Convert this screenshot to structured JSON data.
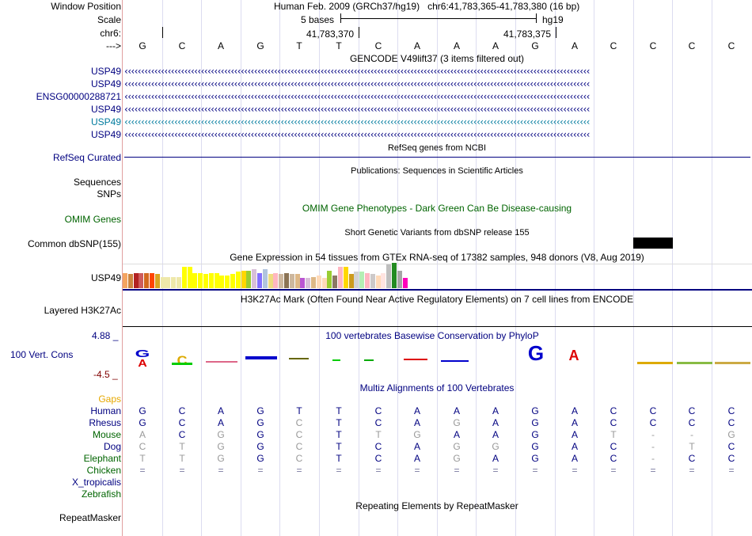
{
  "header": {
    "window_position_label": "Window Position",
    "assembly": "Human Feb. 2009 (GRCh37/hg19)",
    "position": "chr6:41,783,365-41,783,380 (16 bp)",
    "scale_label": "Scale",
    "scale_value": "5 bases",
    "scale_db": "hg19",
    "chrom_label": "chr6:",
    "coord1": "41,783,370",
    "coord2": "41,783,375",
    "strand_label": "--->"
  },
  "sequence": [
    "G",
    "C",
    "A",
    "G",
    "T",
    "T",
    "C",
    "A",
    "A",
    "A",
    "G",
    "A",
    "C",
    "C",
    "C",
    "C"
  ],
  "gencode": {
    "title": "GENCODE V49lift37 (3 items filtered out)",
    "rows": [
      {
        "label": "USP49",
        "color": "#000080"
      },
      {
        "label": "USP49",
        "color": "#000080"
      },
      {
        "label": "ENSG00000288721",
        "color": "#000080"
      },
      {
        "label": "USP49",
        "color": "#000080"
      },
      {
        "label": "USP49",
        "color": "#007b9e"
      },
      {
        "label": "USP49",
        "color": "#000080"
      }
    ]
  },
  "refseq": {
    "label": "RefSeq Curated",
    "title": "RefSeq genes from NCBI"
  },
  "publications": {
    "title": "Publications: Sequences in Scientific Articles",
    "label1": "Sequences",
    "label2": "SNPs"
  },
  "omim": {
    "label": "OMIM Genes",
    "title": "OMIM Gene Phenotypes - Dark Green Can Be Disease-causing"
  },
  "dbsnp": {
    "label": "Common dbSNP(155)",
    "title": "Short Genetic Variants from dbSNP release 155"
  },
  "gtex": {
    "title": "Gene Expression in 54 tissues from GTEx RNA-seq of 17382 samples, 948 donors (V8, Aug 2019)",
    "label": "USP49",
    "bars": [
      {
        "c": "#f4a460",
        "v": 0.6
      },
      {
        "c": "#cd853f",
        "v": 0.55
      },
      {
        "c": "#b22222",
        "v": 0.6
      },
      {
        "c": "#cd5c5c",
        "v": 0.6
      },
      {
        "c": "#d2691e",
        "v": 0.6
      },
      {
        "c": "#ff4500",
        "v": 0.6
      },
      {
        "c": "#daa520",
        "v": 0.55
      },
      {
        "c": "#eee8aa",
        "v": 0.45
      },
      {
        "c": "#eee8aa",
        "v": 0.45
      },
      {
        "c": "#eee8aa",
        "v": 0.45
      },
      {
        "c": "#eee8aa",
        "v": 0.45
      },
      {
        "c": "#ffff00",
        "v": 0.85
      },
      {
        "c": "#ffff00",
        "v": 0.85
      },
      {
        "c": "#ffff00",
        "v": 0.6
      },
      {
        "c": "#ffff00",
        "v": 0.6
      },
      {
        "c": "#ffff00",
        "v": 0.55
      },
      {
        "c": "#ffff00",
        "v": 0.6
      },
      {
        "c": "#ffff00",
        "v": 0.6
      },
      {
        "c": "#ffff00",
        "v": 0.5
      },
      {
        "c": "#ffff00",
        "v": 0.5
      },
      {
        "c": "#ffff00",
        "v": 0.55
      },
      {
        "c": "#ffff00",
        "v": 0.65
      },
      {
        "c": "#ffd700",
        "v": 0.7
      },
      {
        "c": "#9acd32",
        "v": 0.7
      },
      {
        "c": "#d8bfd8",
        "v": 0.75
      },
      {
        "c": "#8470ff",
        "v": 0.6
      },
      {
        "c": "#b0c4de",
        "v": 0.75
      },
      {
        "c": "#eedd82",
        "v": 0.55
      },
      {
        "c": "#ffb6c1",
        "v": 0.6
      },
      {
        "c": "#cdb79e",
        "v": 0.55
      },
      {
        "c": "#8b7355",
        "v": 0.6
      },
      {
        "c": "#cdb79e",
        "v": 0.55
      },
      {
        "c": "#deb887",
        "v": 0.55
      },
      {
        "c": "#ba55d3",
        "v": 0.4
      },
      {
        "c": "#d8bfd8",
        "v": 0.4
      },
      {
        "c": "#deb887",
        "v": 0.45
      },
      {
        "c": "#ffdab9",
        "v": 0.5
      },
      {
        "c": "#ffdab9",
        "v": 0.4
      },
      {
        "c": "#9acd32",
        "v": 0.7
      },
      {
        "c": "#8b7765",
        "v": 0.5
      },
      {
        "c": "#ffb6c1",
        "v": 0.85
      },
      {
        "c": "#ffd700",
        "v": 0.85
      },
      {
        "c": "#cd9b1d",
        "v": 0.55
      },
      {
        "c": "#d3d3d3",
        "v": 0.65
      },
      {
        "c": "#b4eeb4",
        "v": 0.65
      },
      {
        "c": "#ffb6c1",
        "v": 0.6
      },
      {
        "c": "#cdc9c9",
        "v": 0.55
      },
      {
        "c": "#ffdab9",
        "v": 0.5
      },
      {
        "c": "#ffe4e1",
        "v": 0.6
      },
      {
        "c": "#bebebe",
        "v": 0.95
      },
      {
        "c": "#228b22",
        "v": 1.0
      },
      {
        "c": "#a6a6a6",
        "v": 0.7
      },
      {
        "c": "#ff00bb",
        "v": 0.4
      }
    ]
  },
  "h3k27ac": {
    "label": "Layered H3K27Ac",
    "title": "H3K27Ac Mark (Often Found Near Active Regulatory Elements) on 7 cell lines from ENCODE"
  },
  "phylop": {
    "title": "100 vertebrates Basewise Conservation by PhyloP",
    "label": "100 Vert. Cons",
    "max": "4.88 _",
    "min": "-4.5 _"
  },
  "multiz": {
    "title": "Multiz Alignments of 100 Vertebrates",
    "gaps_label": "Gaps",
    "species": [
      {
        "name": "Human",
        "cls": "navy",
        "bases": [
          "G",
          "C",
          "A",
          "G",
          "T",
          "T",
          "C",
          "A",
          "A",
          "A",
          "G",
          "A",
          "C",
          "C",
          "C",
          "C"
        ],
        "gray": []
      },
      {
        "name": "Rhesus",
        "cls": "navy",
        "bases": [
          "G",
          "C",
          "A",
          "G",
          "C",
          "T",
          "C",
          "A",
          "G",
          "A",
          "G",
          "A",
          "C",
          "C",
          "C",
          "C"
        ],
        "gray": [
          4,
          8
        ]
      },
      {
        "name": "Mouse",
        "cls": "green",
        "bases": [
          "A",
          "C",
          "G",
          "G",
          "C",
          "T",
          "T",
          "G",
          "A",
          "A",
          "G",
          "A",
          "T",
          "-",
          "-",
          "G"
        ],
        "gray": [
          0,
          2,
          4,
          6,
          7,
          12,
          13,
          14,
          15
        ]
      },
      {
        "name": "Dog",
        "cls": "navy",
        "bases": [
          "C",
          "T",
          "G",
          "G",
          "C",
          "T",
          "C",
          "A",
          "G",
          "G",
          "G",
          "A",
          "C",
          "-",
          "T",
          "C"
        ],
        "gray": [
          0,
          1,
          2,
          4,
          8,
          9,
          13,
          14
        ]
      },
      {
        "name": "Elephant",
        "cls": "green",
        "bases": [
          "T",
          "T",
          "G",
          "G",
          "C",
          "T",
          "C",
          "A",
          "G",
          "A",
          "G",
          "A",
          "C",
          "-",
          "C",
          "C"
        ],
        "gray": [
          0,
          1,
          2,
          4,
          8,
          13
        ]
      },
      {
        "name": "Chicken",
        "cls": "green",
        "bases": [
          "=",
          "=",
          "=",
          "=",
          "=",
          "=",
          "=",
          "=",
          "=",
          "=",
          "=",
          "=",
          "=",
          "=",
          "=",
          "="
        ],
        "gray": []
      },
      {
        "name": "X_tropicalis",
        "cls": "navy",
        "bases": [],
        "gray": []
      },
      {
        "name": "Zebrafish",
        "cls": "green",
        "bases": [],
        "gray": []
      }
    ]
  },
  "repeatmasker": {
    "label": "RepeatMasker",
    "title": "Repeating Elements by RepeatMasker"
  },
  "colors": {
    "A": "#00cc00",
    "C": "#0000cc",
    "G": "#ddaa00",
    "T": "#dd0000",
    "navy": "#000080",
    "sep": "#e0a0a0"
  }
}
